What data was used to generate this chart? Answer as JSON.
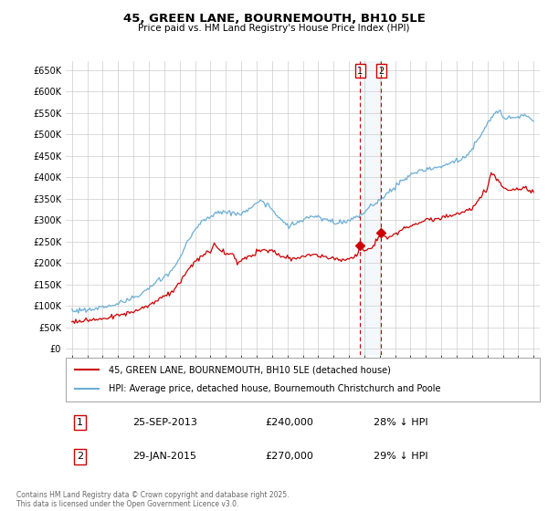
{
  "title": "45, GREEN LANE, BOURNEMOUTH, BH10 5LE",
  "subtitle": "Price paid vs. HM Land Registry's House Price Index (HPI)",
  "background_color": "#ffffff",
  "grid_color": "#cccccc",
  "hpi_color": "#6aaed6",
  "price_color": "#cc0000",
  "sale1_date": "25-SEP-2013",
  "sale1_price": 240000,
  "sale1_hpi_pct": "28%",
  "sale2_date": "29-JAN-2015",
  "sale2_price": 270000,
  "sale2_hpi_pct": "29%",
  "legend_label1": "45, GREEN LANE, BOURNEMOUTH, BH10 5LE (detached house)",
  "legend_label2": "HPI: Average price, detached house, Bournemouth Christchurch and Poole",
  "footer_text": "Contains HM Land Registry data © Crown copyright and database right 2025.\nThis data is licensed under the Open Government Licence v3.0.",
  "sale1_x": 2013.73,
  "sale2_x": 2015.08,
  "xlim_left": 1994.6,
  "xlim_right": 2025.4,
  "yticks": [
    0,
    50000,
    100000,
    150000,
    200000,
    250000,
    300000,
    350000,
    400000,
    450000,
    500000,
    550000,
    600000,
    650000
  ],
  "ylim_top": 670000,
  "ylim_bottom": -15000
}
